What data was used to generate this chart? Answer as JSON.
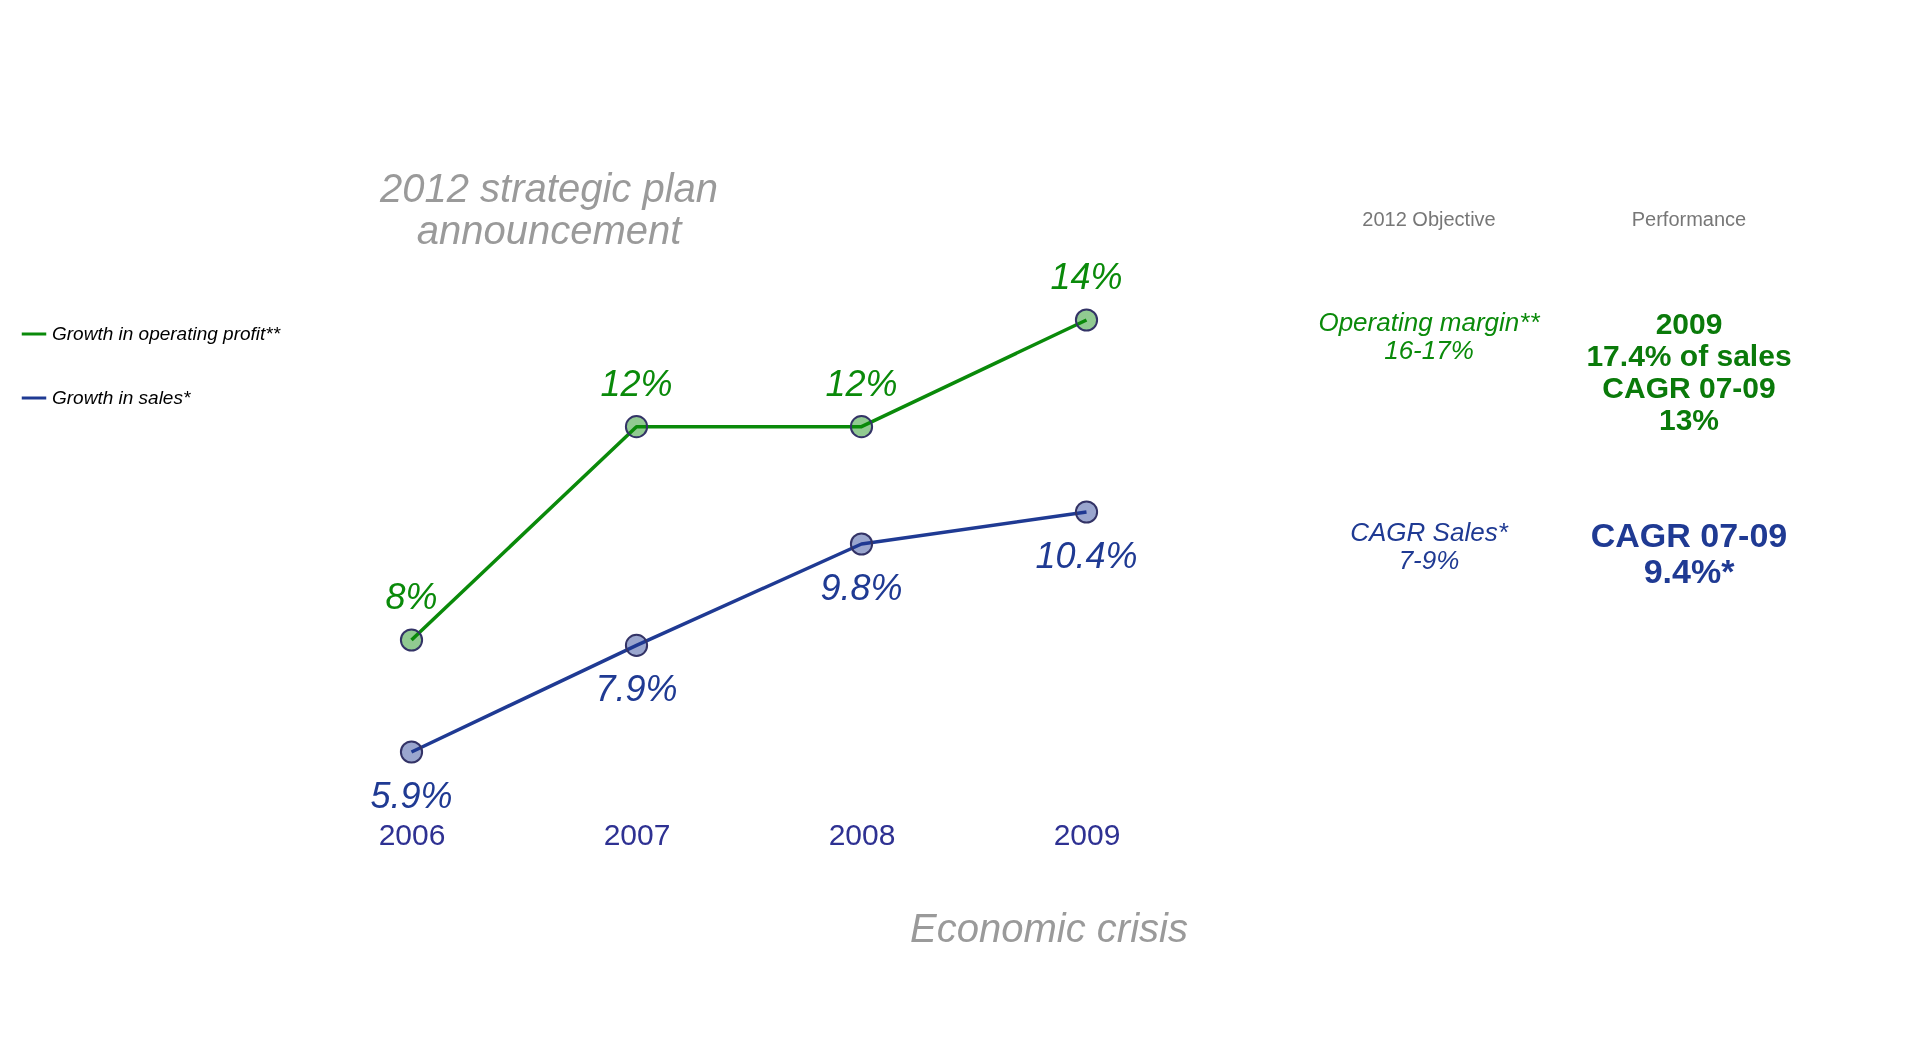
{
  "chart_data": {
    "type": "line",
    "categories": [
      "2006",
      "2007",
      "2008",
      "2009"
    ],
    "series": [
      {
        "name": "Growth in operating profit**",
        "color": "#0a8a0a",
        "values": [
          8,
          12,
          12,
          14
        ],
        "value_labels": [
          "8%",
          "12%",
          "12%",
          "14%"
        ]
      },
      {
        "name": "Growth in sales*",
        "color": "#1f3a93",
        "values": [
          5.9,
          7.9,
          9.8,
          10.4
        ],
        "value_labels": [
          "5.9%",
          "7.9%",
          "9.8%",
          "10.4%"
        ]
      }
    ],
    "annotations": [
      "2012 strategic plan\nannouncement",
      "Economic crisis",
      "2012 Objective",
      "Performance",
      "Operating margin**\n16-17%",
      "2009\n17.4% of sales\nCAGR 07-09\n13%",
      "CAGR Sales*\n7-9%",
      "CAGR 07-09\n9.4%*"
    ],
    "tick_labels": "x",
    "grid": false,
    "legend": "left",
    "marker": "circle",
    "line_style": "solid"
  }
}
